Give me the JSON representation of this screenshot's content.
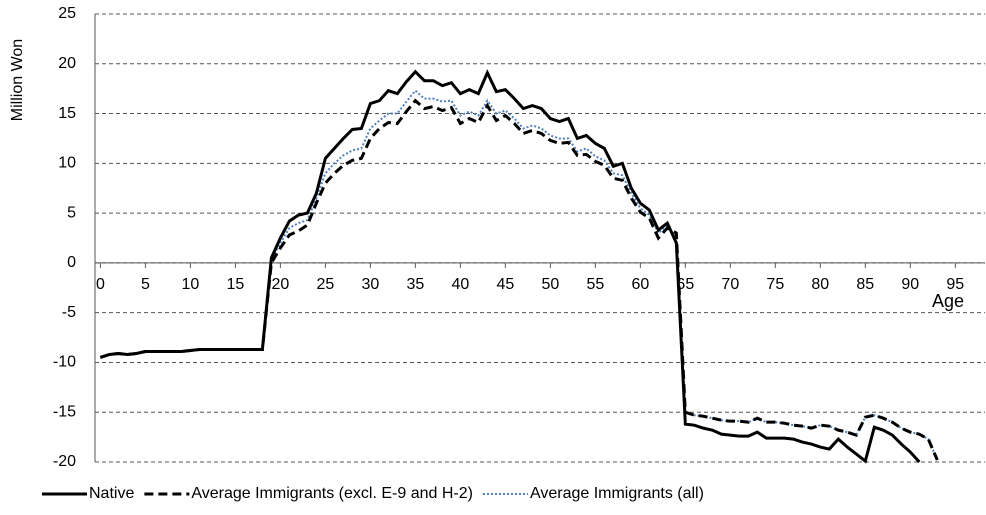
{
  "chart_data": {
    "type": "line",
    "y_label": "Million Won",
    "x_label": "Age",
    "x": [
      0,
      1,
      2,
      3,
      4,
      5,
      6,
      7,
      8,
      9,
      10,
      11,
      12,
      13,
      14,
      15,
      16,
      17,
      18,
      19,
      20,
      21,
      22,
      23,
      24,
      25,
      26,
      27,
      28,
      29,
      30,
      31,
      32,
      33,
      34,
      35,
      36,
      37,
      38,
      39,
      40,
      41,
      42,
      43,
      44,
      45,
      46,
      47,
      48,
      49,
      50,
      51,
      52,
      53,
      54,
      55,
      56,
      57,
      58,
      59,
      60,
      61,
      62,
      63,
      64,
      65,
      66,
      67,
      68,
      69,
      70,
      71,
      72,
      73,
      74,
      75,
      76,
      77,
      78,
      79,
      80,
      81,
      82,
      83,
      84,
      85,
      86,
      87,
      88,
      89,
      90,
      91,
      92,
      93
    ],
    "series": [
      {
        "name": "Average Immigrants (all)",
        "color": "#4f81bd",
        "dash": "dotted",
        "values": [
          -9.5,
          -9.2,
          -9.1,
          -9.2,
          -9.1,
          -8.9,
          -8.9,
          -8.9,
          -8.9,
          -8.9,
          -8.8,
          -8.7,
          -8.7,
          -8.7,
          -8.7,
          -8.7,
          -8.7,
          -8.7,
          -8.7,
          0.3,
          2,
          3.5,
          4,
          4.3,
          6.5,
          9,
          10,
          10.8,
          11.3,
          11.5,
          13.5,
          14.3,
          15,
          15,
          16.2,
          17.3,
          16.5,
          16.5,
          16.2,
          16.3,
          14.8,
          15.2,
          14.8,
          16.3,
          15,
          15.3,
          14.5,
          13.5,
          13.8,
          13.5,
          12.8,
          12.5,
          12.5,
          11.2,
          11.5,
          10.7,
          10.3,
          9,
          8.8,
          7,
          5.5,
          4.8,
          3,
          3.7,
          2.5,
          -15,
          -15.3,
          -15.4,
          -15.6,
          -15.8,
          -15.9,
          -15.9,
          -16,
          -15.6,
          -16,
          -16,
          -16.1,
          -16.3,
          -16.4,
          -16.6,
          -16.3,
          -16.4,
          -16.8,
          -17,
          -17.3,
          -15.5,
          -15.3,
          -15.6,
          -16,
          -16.6,
          -17,
          -17.2,
          -17.7,
          -19.8
        ]
      },
      {
        "name": "Average Immigrants (excl. E-9 and H-2)",
        "color": "#000000",
        "dash": "dashed",
        "values": [
          -9.5,
          -9.2,
          -9.1,
          -9.2,
          -9.1,
          -8.9,
          -8.9,
          -8.9,
          -8.9,
          -8.9,
          -8.8,
          -8.7,
          -8.7,
          -8.7,
          -8.7,
          -8.7,
          -8.7,
          -8.7,
          -8.7,
          0,
          1.5,
          2.8,
          3.2,
          3.8,
          6,
          8,
          9,
          9.8,
          10.3,
          10.5,
          12.5,
          13.5,
          14.1,
          14,
          15.2,
          16.3,
          15.5,
          15.7,
          15.3,
          15.6,
          14,
          14.5,
          14.1,
          15.8,
          14.3,
          14.8,
          14,
          13,
          13.3,
          13,
          12.3,
          12,
          12.1,
          10.8,
          10.9,
          10.2,
          9.8,
          8.5,
          8.3,
          6.5,
          5.1,
          4.5,
          2.5,
          3.5,
          3,
          -15,
          -15.3,
          -15.4,
          -15.6,
          -15.8,
          -15.9,
          -15.9,
          -16,
          -15.6,
          -16,
          -16,
          -16.1,
          -16.3,
          -16.4,
          -16.6,
          -16.3,
          -16.4,
          -16.8,
          -17,
          -17.3,
          -15.5,
          -15.3,
          -15.6,
          -16,
          -16.6,
          -17,
          -17.2,
          -17.7,
          -19.8
        ]
      },
      {
        "name": "Native",
        "color": "#000000",
        "dash": "solid",
        "values": [
          -9.5,
          -9.2,
          -9.1,
          -9.2,
          -9.1,
          -8.9,
          -8.9,
          -8.9,
          -8.9,
          -8.9,
          -8.8,
          -8.7,
          -8.7,
          -8.7,
          -8.7,
          -8.7,
          -8.7,
          -8.7,
          -8.7,
          0.5,
          2.5,
          4.2,
          4.8,
          5,
          7,
          10.5,
          11.5,
          12.5,
          13.4,
          13.5,
          16,
          16.3,
          17.3,
          17,
          18.2,
          19.2,
          18.3,
          18.3,
          17.8,
          18.1,
          17,
          17.4,
          17,
          19.1,
          17.2,
          17.4,
          16.5,
          15.5,
          15.8,
          15.5,
          14.5,
          14.2,
          14.5,
          12.5,
          12.8,
          12,
          11.5,
          9.7,
          10,
          7.5,
          6,
          5.3,
          3.3,
          4,
          2,
          -16.2,
          -16.3,
          -16.6,
          -16.8,
          -17.2,
          -17.3,
          -17.4,
          -17.4,
          -17,
          -17.6,
          -17.6,
          -17.6,
          -17.7,
          -18,
          -18.2,
          -18.5,
          -18.7,
          -17.7,
          -18.5,
          -19.2,
          -19.9,
          -16.5,
          -16.8,
          -17.3,
          -18.2,
          -19,
          -20,
          null,
          null
        ]
      }
    ],
    "legend_order": [
      2,
      1,
      0
    ],
    "legend": "bottom",
    "xlim": [
      -0.6,
      98.3
    ],
    "xticks": [
      0,
      5,
      10,
      15,
      20,
      25,
      30,
      35,
      40,
      45,
      50,
      55,
      60,
      65,
      70,
      75,
      80,
      85,
      90,
      95
    ],
    "ylim": [
      -20,
      25
    ],
    "yticks": [
      -20,
      -15,
      -10,
      -5,
      0,
      5,
      10,
      15,
      20,
      25
    ],
    "grid": true
  }
}
